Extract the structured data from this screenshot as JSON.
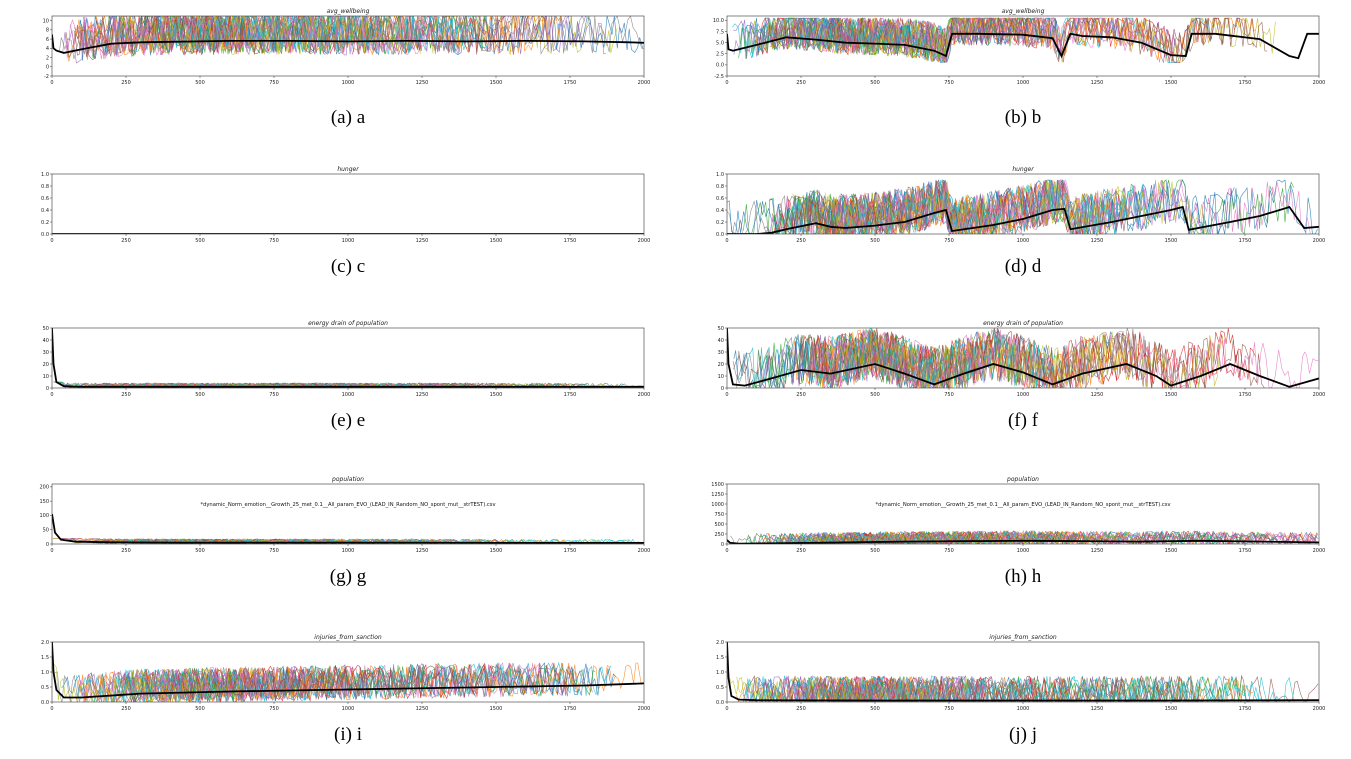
{
  "colors": {
    "mean_line": "#000000",
    "palette": [
      "#1f77b4",
      "#ff7f0e",
      "#2ca02c",
      "#d62728",
      "#9467bd",
      "#8c564b",
      "#e377c2",
      "#7f7f7f",
      "#bcbd22",
      "#17becf"
    ]
  },
  "chart_data": [
    {
      "id": "a",
      "type": "line",
      "title": "avg_wellbeing",
      "caption": "(a) a",
      "xlim": [
        0,
        2000
      ],
      "ylim": [
        -2,
        11
      ],
      "xticks": [
        "0",
        "250",
        "500",
        "750",
        "1000",
        "1250",
        "1500",
        "1750",
        "2000"
      ],
      "yticks": [
        "-2",
        "0",
        "2",
        "4",
        "6",
        "8",
        "10"
      ],
      "yvals": [
        -2,
        0,
        2,
        4,
        6,
        8,
        10
      ],
      "mean": {
        "x": [
          0,
          5,
          15,
          40,
          100,
          200,
          300,
          400,
          600,
          800,
          1000,
          1200,
          1400,
          1600,
          1800,
          1950,
          2000
        ],
        "y": [
          7,
          4,
          3.5,
          3,
          3.8,
          5,
          5.3,
          5.4,
          5.6,
          5.6,
          5.5,
          5.6,
          5.5,
          5.6,
          5.5,
          5.3,
          5.2
        ]
      },
      "band": [
        0,
        11
      ]
    },
    {
      "id": "b",
      "type": "line",
      "title": "avg_wellbeing",
      "caption": "(b) b",
      "xlim": [
        0,
        2000
      ],
      "ylim": [
        -2.5,
        11
      ],
      "xticks": [
        "0",
        "250",
        "500",
        "750",
        "1000",
        "1250",
        "1500",
        "1750",
        "2000"
      ],
      "yticks": [
        "-2.5",
        "0.0",
        "2.5",
        "5.0",
        "7.5",
        "10.0"
      ],
      "yvals": [
        -2.5,
        0,
        2.5,
        5,
        7.5,
        10
      ],
      "mean": {
        "x": [
          0,
          5,
          20,
          100,
          200,
          300,
          400,
          500,
          600,
          700,
          740,
          760,
          850,
          1000,
          1100,
          1130,
          1160,
          1200,
          1300,
          1400,
          1500,
          1550,
          1570,
          1650,
          1800,
          1900,
          1930,
          1960,
          2000
        ],
        "y": [
          7,
          3.5,
          3.2,
          4.5,
          6.2,
          5.7,
          5,
          4.8,
          4.5,
          3.2,
          2,
          7,
          7,
          6.8,
          6,
          2,
          7,
          6.5,
          6.2,
          5,
          2.2,
          2,
          7,
          7,
          5.8,
          2,
          1.5,
          7,
          7
        ]
      },
      "band": [
        0.5,
        10.5
      ]
    },
    {
      "id": "c",
      "type": "line",
      "title": "hunger",
      "caption": "(c) c",
      "xlim": [
        0,
        2000
      ],
      "ylim": [
        0,
        1
      ],
      "xticks": [
        "0",
        "250",
        "500",
        "750",
        "1000",
        "1250",
        "1500",
        "1750",
        "2000"
      ],
      "yticks": [
        "0.0",
        "0.2",
        "0.4",
        "0.6",
        "0.8",
        "1.0"
      ],
      "yvals": [
        0,
        0.2,
        0.4,
        0.6,
        0.8,
        1
      ],
      "mean": {
        "x": [
          0,
          2000
        ],
        "y": [
          0,
          0
        ]
      },
      "band": null
    },
    {
      "id": "d",
      "type": "line",
      "title": "hunger",
      "caption": "(d) d",
      "xlim": [
        0,
        2000
      ],
      "ylim": [
        0,
        1
      ],
      "xticks": [
        "0",
        "250",
        "500",
        "750",
        "1000",
        "1250",
        "1500",
        "1750",
        "2000"
      ],
      "yticks": [
        "0.0",
        "0.2",
        "0.4",
        "0.6",
        "0.8",
        "1.0"
      ],
      "yvals": [
        0,
        0.2,
        0.4,
        0.6,
        0.8,
        1
      ],
      "mean": {
        "x": [
          0,
          100,
          150,
          200,
          300,
          350,
          400,
          500,
          600,
          700,
          740,
          760,
          900,
          1000,
          1100,
          1140,
          1160,
          1300,
          1400,
          1500,
          1540,
          1560,
          1700,
          1800,
          1900,
          1950,
          2000
        ],
        "y": [
          0,
          0,
          0.02,
          0.08,
          0.18,
          0.12,
          0.1,
          0.14,
          0.2,
          0.35,
          0.4,
          0.05,
          0.15,
          0.25,
          0.4,
          0.42,
          0.08,
          0.2,
          0.3,
          0.4,
          0.45,
          0.07,
          0.2,
          0.3,
          0.45,
          0.1,
          0.12
        ]
      },
      "band": [
        0,
        0.9
      ]
    },
    {
      "id": "e",
      "type": "line",
      "title": "energy drain of population",
      "caption": "(e) e",
      "xlim": [
        0,
        2000
      ],
      "ylim": [
        0,
        50
      ],
      "xticks": [
        "0",
        "250",
        "500",
        "750",
        "1000",
        "1250",
        "1500",
        "1750",
        "2000"
      ],
      "yticks": [
        "0",
        "10",
        "20",
        "30",
        "40",
        "50"
      ],
      "yvals": [
        0,
        10,
        20,
        30,
        40,
        50
      ],
      "mean": {
        "x": [
          0,
          5,
          15,
          40,
          100,
          300,
          600,
          1000,
          1500,
          2000
        ],
        "y": [
          50,
          20,
          5,
          1.5,
          1,
          1,
          1,
          1,
          1,
          1
        ]
      },
      "band": [
        0,
        5
      ]
    },
    {
      "id": "f",
      "type": "line",
      "title": "energy drain of population",
      "caption": "(f) f",
      "xlim": [
        0,
        2000
      ],
      "ylim": [
        0,
        50
      ],
      "xticks": [
        "0",
        "250",
        "500",
        "750",
        "1000",
        "1250",
        "1500",
        "1750",
        "2000"
      ],
      "yticks": [
        "0",
        "10",
        "20",
        "30",
        "40",
        "50"
      ],
      "yvals": [
        0,
        10,
        20,
        30,
        40,
        50
      ],
      "mean": {
        "x": [
          0,
          5,
          20,
          60,
          150,
          250,
          350,
          500,
          600,
          700,
          800,
          900,
          1000,
          1100,
          1200,
          1350,
          1450,
          1500,
          1600,
          1700,
          1800,
          1900,
          2000
        ],
        "y": [
          50,
          20,
          3,
          2,
          8,
          15,
          12,
          20,
          12,
          3,
          12,
          20,
          13,
          3,
          12,
          20,
          10,
          2,
          10,
          20,
          10,
          1,
          8
        ]
      },
      "band": [
        0,
        50
      ]
    },
    {
      "id": "g",
      "type": "line",
      "title": "population",
      "caption": "(g) g",
      "annotation": "*dynamic_Norm_emotion__Growth_25_met_0.1__All_param_EVO_(LEAD_IN_Random_NO_spont_mut__strTEST).csv",
      "xlim": [
        0,
        2000
      ],
      "ylim": [
        0,
        210
      ],
      "xticks": [
        "0",
        "250",
        "500",
        "750",
        "1000",
        "1250",
        "1500",
        "1750",
        "2000"
      ],
      "yticks": [
        "0",
        "50",
        "100",
        "150",
        "200"
      ],
      "yvals": [
        0,
        50,
        100,
        150,
        200
      ],
      "mean": {
        "x": [
          0,
          10,
          30,
          80,
          200,
          400,
          800,
          1200,
          1600,
          2000
        ],
        "y": [
          105,
          40,
          15,
          8,
          6,
          5,
          5,
          5,
          4,
          4
        ]
      },
      "band": [
        0,
        20
      ]
    },
    {
      "id": "h",
      "type": "line",
      "title": "population",
      "caption": "(h) h",
      "annotation": "*dynamic_Norm_emotion__Growth_25_met_0.1__All_param_EVO_(LEAD_IN_Random_NO_spont_mut__strTEST).csv",
      "xlim": [
        0,
        2000
      ],
      "ylim": [
        0,
        1500
      ],
      "xticks": [
        "0",
        "250",
        "500",
        "750",
        "1000",
        "1250",
        "1500",
        "1750",
        "2000"
      ],
      "yticks": [
        "0",
        "250",
        "500",
        "750",
        "1000",
        "1250",
        "1500"
      ],
      "yvals": [
        0,
        250,
        500,
        750,
        1000,
        1250,
        1500
      ],
      "mean": {
        "x": [
          0,
          10,
          40,
          200,
          400,
          600,
          800,
          1000,
          1200,
          1400,
          1600,
          1800,
          2000
        ],
        "y": [
          100,
          30,
          10,
          20,
          40,
          60,
          70,
          80,
          70,
          60,
          80,
          60,
          40
        ]
      },
      "band": [
        0,
        400
      ]
    },
    {
      "id": "i",
      "type": "line",
      "title": "injuries_from_sanction",
      "caption": "(i) i",
      "xlim": [
        0,
        2000
      ],
      "ylim": [
        0,
        2
      ],
      "xticks": [
        "0",
        "250",
        "500",
        "750",
        "1000",
        "1250",
        "1500",
        "1750",
        "2000"
      ],
      "yticks": [
        "0.0",
        "0.5",
        "1.0",
        "1.5",
        "2.0"
      ],
      "yvals": [
        0,
        0.5,
        1,
        1.5,
        2
      ],
      "mean": {
        "x": [
          0,
          5,
          15,
          40,
          100,
          300,
          600,
          900,
          1200,
          1500,
          1800,
          2000
        ],
        "y": [
          2,
          1,
          0.4,
          0.15,
          0.15,
          0.28,
          0.35,
          0.4,
          0.45,
          0.5,
          0.55,
          0.62
        ]
      },
      "band": [
        0,
        1.3
      ]
    },
    {
      "id": "j",
      "type": "line",
      "title": "injuries_from_sanction",
      "caption": "(j) j",
      "xlim": [
        0,
        2000
      ],
      "ylim": [
        0,
        2
      ],
      "xticks": [
        "0",
        "250",
        "500",
        "750",
        "1000",
        "1250",
        "1500",
        "1750",
        "2000"
      ],
      "yticks": [
        "0.0",
        "0.5",
        "1.0",
        "1.5",
        "2.0"
      ],
      "yvals": [
        0,
        0.5,
        1,
        1.5,
        2
      ],
      "mean": {
        "x": [
          0,
          5,
          15,
          40,
          100,
          500,
          1000,
          1500,
          2000
        ],
        "y": [
          2,
          0.8,
          0.2,
          0.08,
          0.06,
          0.05,
          0.05,
          0.05,
          0.06
        ]
      },
      "band": [
        0,
        1.3
      ]
    }
  ]
}
